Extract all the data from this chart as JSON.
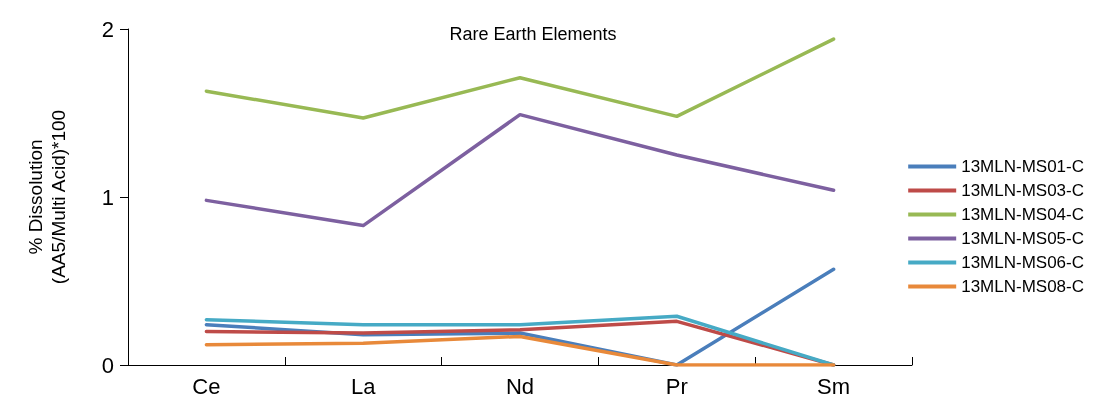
{
  "chart_data": {
    "type": "line",
    "title": "Rare Earth Elements",
    "ylabel": "% Dissolution\n(AA5/Multi Acid)*100",
    "categories": [
      "Ce",
      "La",
      "Nd",
      "Pr",
      "Sm"
    ],
    "ylim": [
      0,
      2
    ],
    "yticks": [
      0,
      1,
      2
    ],
    "grid": false,
    "legend": "right",
    "marker": "none",
    "line_style": "solid",
    "series": [
      {
        "name": "13MLN-MS01-C",
        "color": "#4a7ebb",
        "values": [
          0.24,
          0.18,
          0.19,
          0,
          0.57
        ]
      },
      {
        "name": "13MLN-MS03-C",
        "color": "#be4b48",
        "values": [
          0.2,
          0.19,
          0.21,
          0.26,
          0
        ]
      },
      {
        "name": "13MLN-MS04-C",
        "color": "#98b954",
        "values": [
          1.63,
          1.47,
          1.71,
          1.48,
          1.94
        ]
      },
      {
        "name": "13MLN-MS05-C",
        "color": "#7d60a0",
        "values": [
          0.98,
          0.83,
          1.49,
          1.25,
          1.04
        ]
      },
      {
        "name": "13MLN-MS06-C",
        "color": "#46aac5",
        "values": [
          0.27,
          0.24,
          0.24,
          0.29,
          0
        ]
      },
      {
        "name": "13MLN-MS08-C",
        "color": "#e8893a",
        "values": [
          0.12,
          0.13,
          0.17,
          0,
          0
        ]
      }
    ]
  }
}
